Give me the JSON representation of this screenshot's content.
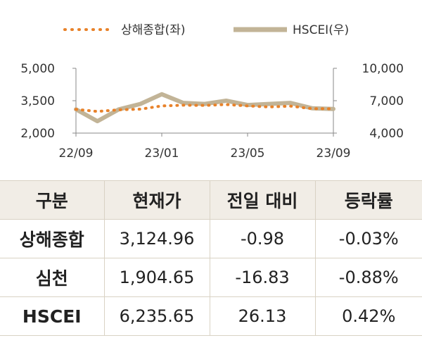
{
  "chart_data": {
    "type": "line",
    "legend": [
      {
        "name": "상해종합(좌)",
        "color": "#e8822a",
        "style": "dotted"
      },
      {
        "name": "HSCEI(우)",
        "color": "#c2b497",
        "style": "thick"
      }
    ],
    "legend_position": "top-center",
    "x_ticks": [
      "22/09",
      "23/01",
      "23/05",
      "23/09"
    ],
    "left_axis": {
      "ticks": [
        "5,000",
        "3,500",
        "2,000"
      ],
      "ylim": [
        2000,
        5000
      ]
    },
    "right_axis": {
      "ticks": [
        "10,000",
        "7,000",
        "4,000"
      ],
      "ylim": [
        4000,
        10000
      ]
    },
    "grid": false,
    "series": [
      {
        "name": "상해종합(좌)",
        "axis": "left",
        "x": [
          "22/09",
          "22/10",
          "22/11",
          "22/12",
          "23/01",
          "23/02",
          "23/03",
          "23/04",
          "23/05",
          "23/06",
          "23/07",
          "23/08",
          "23/09"
        ],
        "values": [
          3100,
          3000,
          3080,
          3110,
          3260,
          3290,
          3280,
          3320,
          3260,
          3210,
          3250,
          3130,
          3125
        ]
      },
      {
        "name": "HSCEI(우)",
        "axis": "right",
        "x": [
          "22/09",
          "22/10",
          "22/11",
          "22/12",
          "23/01",
          "23/02",
          "23/03",
          "23/04",
          "23/05",
          "23/06",
          "23/07",
          "23/08",
          "23/09"
        ],
        "values": [
          6200,
          5100,
          6200,
          6700,
          7600,
          6800,
          6700,
          7000,
          6600,
          6700,
          6800,
          6300,
          6236
        ]
      }
    ]
  },
  "table": {
    "headers": [
      "구분",
      "현재가",
      "전일 대비",
      "등락률"
    ],
    "rows": [
      {
        "name": "상해종합",
        "price": "3,124.96",
        "change": "-0.98",
        "rate": "-0.03%"
      },
      {
        "name": "심천",
        "price": "1,904.65",
        "change": "-16.83",
        "rate": "-0.88%"
      },
      {
        "name": "HSCEI",
        "price": "6,235.65",
        "change": "26.13",
        "rate": "0.42%"
      }
    ]
  }
}
